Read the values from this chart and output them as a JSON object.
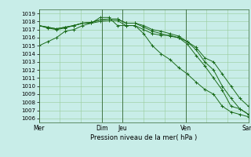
{
  "bg_color": "#c8ede8",
  "grid_color": "#99cc99",
  "line_color": "#1a6b1a",
  "xlabel": "Pression niveau de la mer( hPa )",
  "ylim": [
    1005.5,
    1019.5
  ],
  "yticks": [
    1006,
    1007,
    1008,
    1009,
    1010,
    1011,
    1012,
    1013,
    1014,
    1015,
    1016,
    1017,
    1018,
    1019
  ],
  "xtick_labels": [
    "Mer",
    "",
    "",
    "Dim",
    "Jeu",
    "",
    "",
    "Ven",
    "",
    "",
    "Sam"
  ],
  "xtick_positions": [
    0,
    3,
    6,
    9,
    12,
    15,
    18,
    21,
    24,
    27,
    30
  ],
  "vlines": [
    0,
    9,
    12,
    21,
    30
  ],
  "series": [
    [
      1015.0,
      1015.5,
      1016.0,
      1016.8,
      1017.0,
      1017.5,
      1017.8,
      1018.5,
      1018.5,
      1017.5,
      1017.5,
      1017.5,
      1016.5,
      1015.0,
      1014.0,
      1013.3,
      1012.3,
      1011.5,
      1010.5,
      1009.6,
      1009.0,
      1007.5,
      1006.8,
      1006.5,
      1006.2
    ],
    [
      1017.5,
      1017.2,
      1017.0,
      1017.2,
      1017.5,
      1017.8,
      1017.8,
      1018.0,
      1018.1,
      1018.1,
      1017.5,
      1017.5,
      1017.0,
      1016.5,
      1016.3,
      1016.3,
      1016.0,
      1015.5,
      1014.8,
      1013.5,
      1013.0,
      1011.5,
      1010.0,
      1008.5,
      1007.5
    ],
    [
      1017.5,
      1017.3,
      1017.1,
      1017.3,
      1017.5,
      1017.8,
      1017.9,
      1018.2,
      1018.3,
      1018.3,
      1017.8,
      1017.8,
      1017.5,
      1017.0,
      1016.8,
      1016.5,
      1016.2,
      1015.5,
      1014.5,
      1013.0,
      1012.0,
      1010.0,
      1008.5,
      1007.2,
      1006.5
    ],
    [
      1017.5,
      1017.3,
      1017.1,
      1017.3,
      1017.5,
      1017.8,
      1017.9,
      1018.2,
      1018.3,
      1018.3,
      1017.8,
      1017.8,
      1017.3,
      1016.8,
      1016.5,
      1016.2,
      1016.0,
      1015.2,
      1013.8,
      1012.5,
      1011.0,
      1009.5,
      1007.5,
      1007.2,
      1006.5
    ]
  ],
  "figsize": [
    3.2,
    2.0
  ],
  "dpi": 100
}
